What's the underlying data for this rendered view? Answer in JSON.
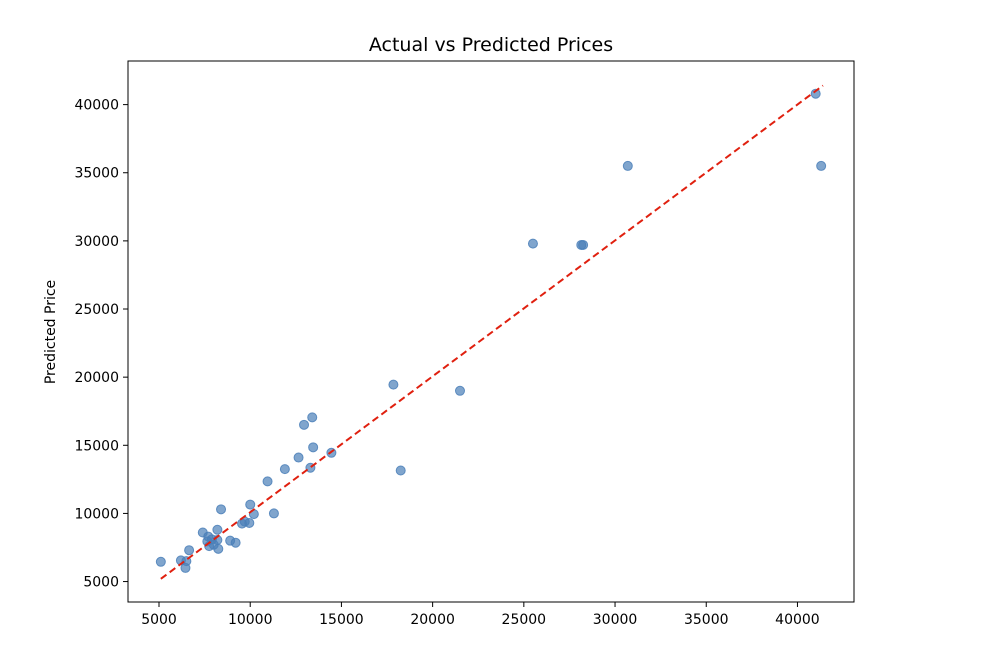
{
  "chart_data": {
    "type": "scatter",
    "title": "Actual vs Predicted Prices",
    "xlabel": "",
    "ylabel": "Predicted Price",
    "xlim": [
      3300,
      43100
    ],
    "ylim": [
      3500,
      43200
    ],
    "xticks": [
      5000,
      10000,
      15000,
      20000,
      25000,
      30000,
      35000,
      40000
    ],
    "yticks": [
      5000,
      10000,
      15000,
      20000,
      25000,
      30000,
      35000,
      40000
    ],
    "grid": false,
    "point_color": "#4a7fb8",
    "line_color": "#e0200f",
    "reference_line": {
      "style": "dashed",
      "x": [
        5100,
        41400
      ],
      "y": [
        5200,
        41400
      ]
    },
    "points": [
      {
        "x": 5100,
        "y": 6450
      },
      {
        "x": 6200,
        "y": 6550
      },
      {
        "x": 6450,
        "y": 6000
      },
      {
        "x": 6500,
        "y": 6500
      },
      {
        "x": 6650,
        "y": 7300
      },
      {
        "x": 7400,
        "y": 8600
      },
      {
        "x": 7650,
        "y": 7950
      },
      {
        "x": 7700,
        "y": 8300
      },
      {
        "x": 7750,
        "y": 7600
      },
      {
        "x": 7900,
        "y": 8100
      },
      {
        "x": 8000,
        "y": 7700
      },
      {
        "x": 8200,
        "y": 8800
      },
      {
        "x": 8200,
        "y": 8050
      },
      {
        "x": 8250,
        "y": 7400
      },
      {
        "x": 8400,
        "y": 10300
      },
      {
        "x": 8900,
        "y": 8000
      },
      {
        "x": 9200,
        "y": 7850
      },
      {
        "x": 9550,
        "y": 9250
      },
      {
        "x": 9700,
        "y": 9400
      },
      {
        "x": 9950,
        "y": 9300
      },
      {
        "x": 10000,
        "y": 10650
      },
      {
        "x": 10200,
        "y": 9950
      },
      {
        "x": 10950,
        "y": 12350
      },
      {
        "x": 11300,
        "y": 10000
      },
      {
        "x": 11900,
        "y": 13250
      },
      {
        "x": 12650,
        "y": 14100
      },
      {
        "x": 12950,
        "y": 16500
      },
      {
        "x": 13300,
        "y": 13350
      },
      {
        "x": 13400,
        "y": 17050
      },
      {
        "x": 13450,
        "y": 14850
      },
      {
        "x": 14450,
        "y": 14450
      },
      {
        "x": 17850,
        "y": 19450
      },
      {
        "x": 18250,
        "y": 13150
      },
      {
        "x": 21500,
        "y": 19000
      },
      {
        "x": 25500,
        "y": 29800
      },
      {
        "x": 28150,
        "y": 29700
      },
      {
        "x": 28250,
        "y": 29700
      },
      {
        "x": 30700,
        "y": 35500
      },
      {
        "x": 41000,
        "y": 40800
      },
      {
        "x": 41300,
        "y": 35500
      }
    ]
  }
}
